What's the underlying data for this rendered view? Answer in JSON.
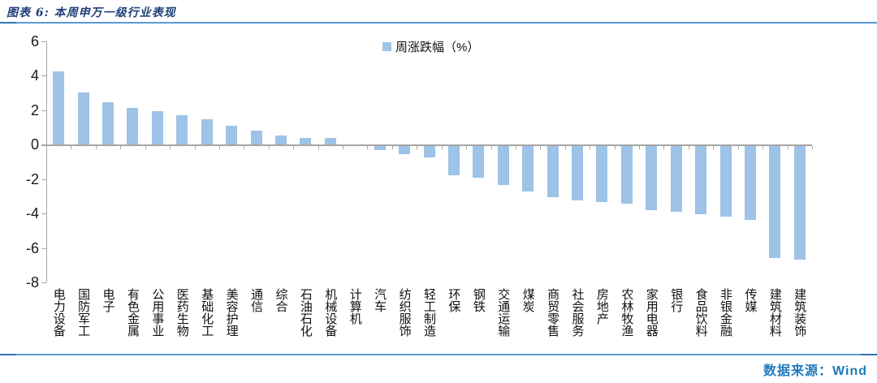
{
  "figure": {
    "title": "图表 6: 本周申万一级行业表现",
    "source": "数据来源：Wind"
  },
  "legend": {
    "label": "周涨跌幅（%）"
  },
  "colors": {
    "bar": "#9DC3E6",
    "axis": "#A6A6A6",
    "title_text": "#1F3F77",
    "rule_main": "#5B9BD5",
    "rule_tip": "#2E75B6",
    "source_text": "#1F7BBF",
    "tick_text": "#1a1a1a"
  },
  "chart_data": {
    "type": "bar",
    "title": "本周申万一级行业表现",
    "legend": [
      "周涨跌幅（%）"
    ],
    "legend_position": "top-center",
    "grid": false,
    "xlabel": "",
    "ylabel": "",
    "ylim": [
      -8,
      6
    ],
    "ytick_step": 2,
    "yticks": [
      6,
      4,
      2,
      0,
      -2,
      -4,
      -6,
      -8
    ],
    "categories": [
      "电力设备",
      "国防军工",
      "电子",
      "有色金属",
      "公用事业",
      "医药生物",
      "基础化工",
      "美容护理",
      "通信",
      "综合",
      "石油石化",
      "机械设备",
      "计算机",
      "汽车",
      "纺织服饰",
      "轻工制造",
      "环保",
      "钢铁",
      "交通运输",
      "煤炭",
      "商贸零售",
      "社会服务",
      "房地产",
      "农林牧渔",
      "家用电器",
      "银行",
      "食品饮料",
      "非银金融",
      "传媒",
      "建筑材料",
      "建筑装饰"
    ],
    "values": [
      4.25,
      3.0,
      2.45,
      2.1,
      1.95,
      1.7,
      1.45,
      1.1,
      0.8,
      0.5,
      0.4,
      0.38,
      0.0,
      -0.25,
      -0.45,
      -0.65,
      -1.7,
      -1.85,
      -2.25,
      -2.65,
      -2.95,
      -3.15,
      -3.25,
      -3.35,
      -3.7,
      -3.8,
      -3.95,
      -4.1,
      -4.3,
      -6.5,
      -6.6
    ]
  }
}
